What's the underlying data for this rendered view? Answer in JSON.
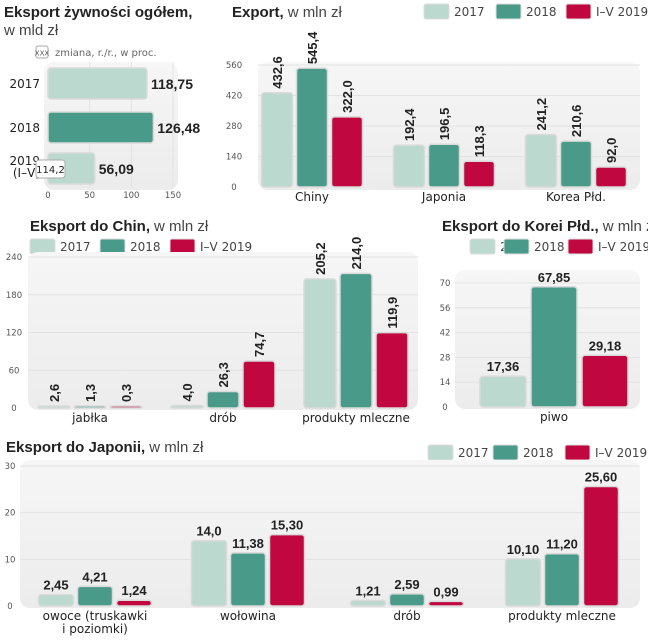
{
  "colors": {
    "2017": "#bcd9d0",
    "2018": "#4a9a8a",
    "I-V 2019": "#c0073f"
  },
  "legend": [
    "2017",
    "2018",
    "I–V 2019"
  ],
  "chart_data": [
    {
      "type": "bar",
      "orientation": "horizontal",
      "title": "Eksport żywności ogółem,",
      "subtitle": "w mld zł",
      "note_box": "XXX",
      "note": "zmiana, r./r., w proc.",
      "categories": [
        "2017",
        "2018",
        "2019 (I–V)"
      ],
      "category_lines": [
        [
          "2017"
        ],
        [
          "2018"
        ],
        [
          "2019",
          "(I–V)"
        ]
      ],
      "values": [
        118.75,
        126.48,
        56.09
      ],
      "value_labels": [
        "118,75",
        "126,48",
        "56,09"
      ],
      "bar_colors": [
        "2017",
        "2018",
        "2017"
      ],
      "change_label": "114,2",
      "xlim": [
        0,
        150
      ],
      "xticks": [
        "0",
        "50",
        "100",
        "150"
      ]
    },
    {
      "type": "bar",
      "title": "Export,",
      "subtitle": "w mln zł",
      "categories": [
        "Chiny",
        "Japonia",
        "Korea Płd."
      ],
      "series": [
        {
          "name": "2017",
          "values": [
            432.6,
            192.4,
            241.2
          ],
          "labels": [
            "432,6",
            "192,4",
            "241,2"
          ]
        },
        {
          "name": "2018",
          "values": [
            545.4,
            196.5,
            210.6
          ],
          "labels": [
            "545,4",
            "196,5",
            "210,6"
          ]
        },
        {
          "name": "I–V 2019",
          "values": [
            322.0,
            118.3,
            92.0
          ],
          "labels": [
            "322,0",
            "118,3",
            "92,0"
          ]
        }
      ],
      "ylim": [
        0,
        560
      ],
      "yticks": [
        "0",
        "140",
        "280",
        "420",
        "560"
      ]
    },
    {
      "type": "bar",
      "title": "Eksport do Chin,",
      "subtitle": "w mln zł",
      "categories": [
        "jabłka",
        "drób",
        "produkty mleczne"
      ],
      "series": [
        {
          "name": "2017",
          "values": [
            2.6,
            4.0,
            205.2
          ],
          "labels": [
            "2,6",
            "4,0",
            "205,2"
          ]
        },
        {
          "name": "2018",
          "values": [
            1.3,
            26.3,
            214.0
          ],
          "labels": [
            "1,3",
            "26,3",
            "214,0"
          ]
        },
        {
          "name": "I–V 2019",
          "values": [
            0.3,
            74.7,
            119.9
          ],
          "labels": [
            "0,3",
            "74,7",
            "119,9"
          ]
        }
      ],
      "ylim": [
        0,
        240
      ],
      "yticks": [
        "0",
        "60",
        "120",
        "180",
        "240"
      ]
    },
    {
      "type": "bar",
      "title": "Eksport do Korei Płd.,",
      "subtitle": "w mln zł",
      "categories": [
        "piwo"
      ],
      "series": [
        {
          "name": "2017",
          "values": [
            17.36
          ],
          "labels": [
            "17,36"
          ]
        },
        {
          "name": "2018",
          "values": [
            67.85
          ],
          "labels": [
            "67,85"
          ]
        },
        {
          "name": "I–V 2019",
          "values": [
            29.18
          ],
          "labels": [
            "29,18"
          ]
        }
      ],
      "ylim": [
        0,
        70
      ],
      "yticks": [
        "0",
        "14",
        "28",
        "42",
        "56",
        "70"
      ]
    },
    {
      "type": "bar",
      "title": "Eksport do Japonii,",
      "subtitle": "w mln zł",
      "categories": [
        "owoce (truskawki i poziomki)",
        "wołowina",
        "drób",
        "produkty mleczne"
      ],
      "category_lines": [
        [
          "owoce (truskawki",
          "i poziomki)"
        ],
        [
          "wołowina"
        ],
        [
          "drób"
        ],
        [
          "produkty mleczne"
        ]
      ],
      "series": [
        {
          "name": "2017",
          "values": [
            2.45,
            14.0,
            1.21,
            10.1
          ],
          "labels": [
            "2,45",
            "14,0",
            "1,21",
            "10,10"
          ]
        },
        {
          "name": "2018",
          "values": [
            4.21,
            11.38,
            2.59,
            11.2
          ],
          "labels": [
            "4,21",
            "11,38",
            "2,59",
            "11,20"
          ]
        },
        {
          "name": "I–V 2019",
          "values": [
            1.24,
            15.3,
            0.99,
            25.6
          ],
          "labels": [
            "1,24",
            "15,30",
            "0,99",
            "25,60"
          ]
        }
      ],
      "ylim": [
        0,
        30
      ],
      "yticks": [
        "0",
        "10",
        "20",
        "30"
      ]
    }
  ]
}
